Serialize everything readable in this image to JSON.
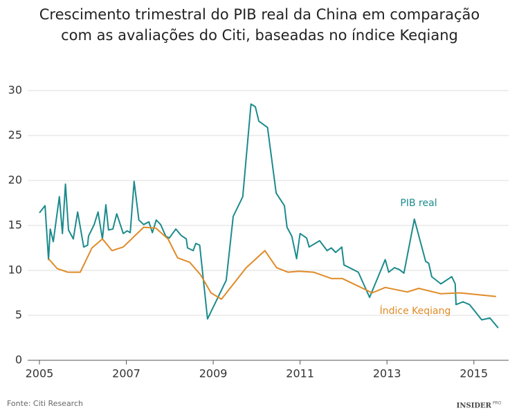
{
  "chart_data": {
    "type": "line",
    "title": [
      "Crescimento trimestral do PIB real da China em comparação",
      "com as avaliações do Citi, baseadas no índice Keqiang"
    ],
    "source": "Fonte: Citi Research",
    "brand": {
      "name": "INSIDER",
      "tag": "PRO"
    },
    "xlim": [
      2004.73,
      2015.8
    ],
    "xticks": [
      2005,
      2007,
      2009,
      2011,
      2013,
      2015
    ],
    "ylim": [
      0,
      31
    ],
    "yticks": [
      0,
      5,
      10,
      15,
      20,
      25,
      30
    ],
    "grid": true,
    "series": [
      {
        "name": "PIB real",
        "color": "#1b8a8c",
        "x": [
          2005.0,
          2005.13,
          2005.21,
          2005.25,
          2005.32,
          2005.46,
          2005.53,
          2005.6,
          2005.67,
          2005.78,
          2005.88,
          2006.02,
          2006.11,
          2006.13,
          2006.26,
          2006.35,
          2006.45,
          2006.53,
          2006.59,
          2006.69,
          2006.78,
          2006.93,
          2007.02,
          2007.09,
          2007.18,
          2007.29,
          2007.4,
          2007.52,
          2007.6,
          2007.69,
          2007.79,
          2007.91,
          2007.99,
          2008.14,
          2008.26,
          2008.38,
          2008.41,
          2008.54,
          2008.6,
          2008.69,
          2008.87,
          2009.3,
          2009.46,
          2009.68,
          2009.87,
          2009.97,
          2010.05,
          2010.25,
          2010.45,
          2010.64,
          2010.7,
          2010.81,
          2010.92,
          2011.0,
          2011.15,
          2011.21,
          2011.45,
          2011.62,
          2011.72,
          2011.82,
          2011.96,
          2012.01,
          2012.34,
          2012.6,
          2012.96,
          2013.04,
          2013.17,
          2013.28,
          2013.39,
          2013.63,
          2013.89,
          2013.96,
          2014.03,
          2014.24,
          2014.49,
          2014.57,
          2014.59,
          2014.75,
          2014.9,
          2015.18,
          2015.37,
          2015.56
        ],
        "values": [
          16.4,
          17.2,
          11.2,
          14.6,
          13.2,
          18.2,
          14.1,
          19.6,
          14.5,
          13.5,
          16.5,
          12.6,
          12.8,
          13.8,
          15.1,
          16.5,
          13.5,
          17.3,
          14.5,
          14.6,
          16.3,
          14.1,
          14.4,
          14.2,
          19.9,
          15.6,
          15.1,
          15.4,
          14.2,
          15.6,
          15.1,
          13.8,
          13.6,
          14.6,
          13.9,
          13.5,
          12.5,
          12.2,
          13.0,
          12.8,
          4.6,
          8.9,
          16.0,
          18.2,
          28.5,
          28.2,
          26.6,
          25.9,
          18.6,
          17.2,
          14.8,
          13.8,
          11.3,
          14.1,
          13.6,
          12.6,
          13.3,
          12.2,
          12.5,
          12.0,
          12.6,
          10.6,
          9.8,
          7.0,
          11.2,
          9.8,
          10.3,
          10.1,
          9.7,
          15.7,
          11.0,
          10.8,
          9.3,
          8.5,
          9.3,
          8.5,
          6.2,
          6.5,
          6.2,
          4.5,
          4.7,
          3.6
        ]
      },
      {
        "name": "Índice Keqiang",
        "color": "#e08a26",
        "x": [
          2005.21,
          2005.41,
          2005.65,
          2005.94,
          2006.21,
          2006.45,
          2006.67,
          2006.93,
          2007.4,
          2007.68,
          2007.96,
          2008.18,
          2008.46,
          2008.71,
          2008.95,
          2009.19,
          2009.76,
          2010.19,
          2010.46,
          2010.72,
          2010.97,
          2011.31,
          2011.72,
          2011.97,
          2012.66,
          2012.96,
          2013.47,
          2013.73,
          2014.24,
          2014.68,
          2015.51
        ],
        "values": [
          11.3,
          10.2,
          9.8,
          9.8,
          12.5,
          13.5,
          12.2,
          12.6,
          14.8,
          14.7,
          13.5,
          11.4,
          10.9,
          9.5,
          7.5,
          6.8,
          10.3,
          12.2,
          10.3,
          9.8,
          9.9,
          9.8,
          9.1,
          9.1,
          7.5,
          8.1,
          7.6,
          8.0,
          7.4,
          7.5,
          7.1
        ]
      }
    ]
  }
}
